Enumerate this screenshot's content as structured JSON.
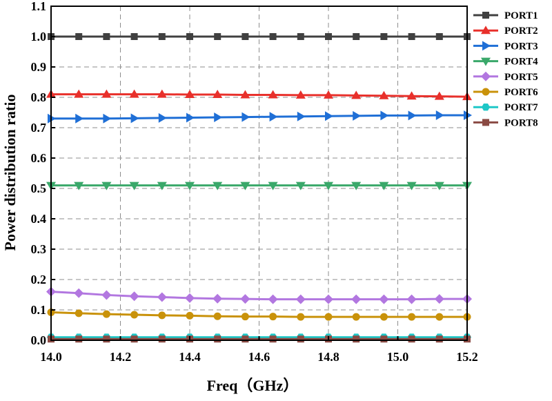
{
  "chart_data": {
    "type": "line",
    "title": "",
    "xlabel": "Freq（GHz）",
    "ylabel": "Power distribution ratio",
    "xlim": [
      14.0,
      15.2
    ],
    "ylim": [
      0.0,
      1.1
    ],
    "grid": true,
    "legend_position": "top-right-outside",
    "x_ticks": [
      14.0,
      14.2,
      14.4,
      14.6,
      14.8,
      15.0,
      15.2
    ],
    "x_tick_labels": [
      "14.0",
      "14.2",
      "14.4",
      "14.6",
      "14.8",
      "15.0",
      "15.2"
    ],
    "y_ticks": [
      0.0,
      0.1,
      0.2,
      0.3,
      0.4,
      0.5,
      0.6,
      0.7,
      0.8,
      0.9,
      1.0,
      1.1
    ],
    "y_tick_labels": [
      "0.0",
      "0.1",
      "0.2",
      "0.3",
      "0.4",
      "0.5",
      "0.6",
      "0.7",
      "0.8",
      "0.9",
      "1.0",
      "1.1"
    ],
    "x": [
      14.0,
      14.08,
      14.16,
      14.24,
      14.32,
      14.4,
      14.48,
      14.56,
      14.64,
      14.72,
      14.8,
      14.88,
      14.96,
      15.04,
      15.12,
      15.2
    ],
    "series": [
      {
        "name": "PORT1",
        "color": "#404040",
        "marker": "square",
        "values": [
          1.0,
          1.0,
          1.0,
          1.0,
          1.0,
          1.0,
          1.0,
          1.0,
          1.0,
          1.0,
          1.0,
          1.0,
          1.0,
          1.0,
          1.0,
          1.0
        ]
      },
      {
        "name": "PORT2",
        "color": "#e8302b",
        "marker": "triangle-up",
        "values": [
          0.81,
          0.81,
          0.81,
          0.81,
          0.81,
          0.809,
          0.809,
          0.808,
          0.808,
          0.807,
          0.807,
          0.806,
          0.805,
          0.804,
          0.803,
          0.802
        ]
      },
      {
        "name": "PORT3",
        "color": "#1f6fd6",
        "marker": "triangle-right",
        "values": [
          0.73,
          0.73,
          0.73,
          0.731,
          0.732,
          0.733,
          0.734,
          0.735,
          0.736,
          0.737,
          0.738,
          0.739,
          0.74,
          0.74,
          0.741,
          0.741
        ]
      },
      {
        "name": "PORT4",
        "color": "#3aa86a",
        "marker": "triangle-down",
        "values": [
          0.51,
          0.51,
          0.51,
          0.51,
          0.51,
          0.51,
          0.51,
          0.51,
          0.51,
          0.51,
          0.51,
          0.51,
          0.51,
          0.51,
          0.51,
          0.51
        ]
      },
      {
        "name": "PORT5",
        "color": "#b277e0",
        "marker": "diamond",
        "values": [
          0.16,
          0.155,
          0.149,
          0.145,
          0.142,
          0.139,
          0.137,
          0.136,
          0.135,
          0.135,
          0.135,
          0.135,
          0.135,
          0.135,
          0.136,
          0.136
        ]
      },
      {
        "name": "PORT6",
        "color": "#c9920a",
        "marker": "circle",
        "values": [
          0.092,
          0.089,
          0.086,
          0.084,
          0.082,
          0.081,
          0.079,
          0.078,
          0.078,
          0.077,
          0.077,
          0.077,
          0.077,
          0.077,
          0.077,
          0.077
        ]
      },
      {
        "name": "PORT7",
        "color": "#1ec7c7",
        "marker": "hexagon",
        "values": [
          0.01,
          0.01,
          0.01,
          0.01,
          0.01,
          0.01,
          0.01,
          0.01,
          0.01,
          0.01,
          0.01,
          0.01,
          0.01,
          0.01,
          0.01,
          0.01
        ]
      },
      {
        "name": "PORT8",
        "color": "#8a4a43",
        "marker": "square",
        "values": [
          0.004,
          0.004,
          0.004,
          0.004,
          0.004,
          0.004,
          0.004,
          0.004,
          0.004,
          0.004,
          0.004,
          0.004,
          0.004,
          0.004,
          0.004,
          0.004
        ]
      }
    ]
  }
}
